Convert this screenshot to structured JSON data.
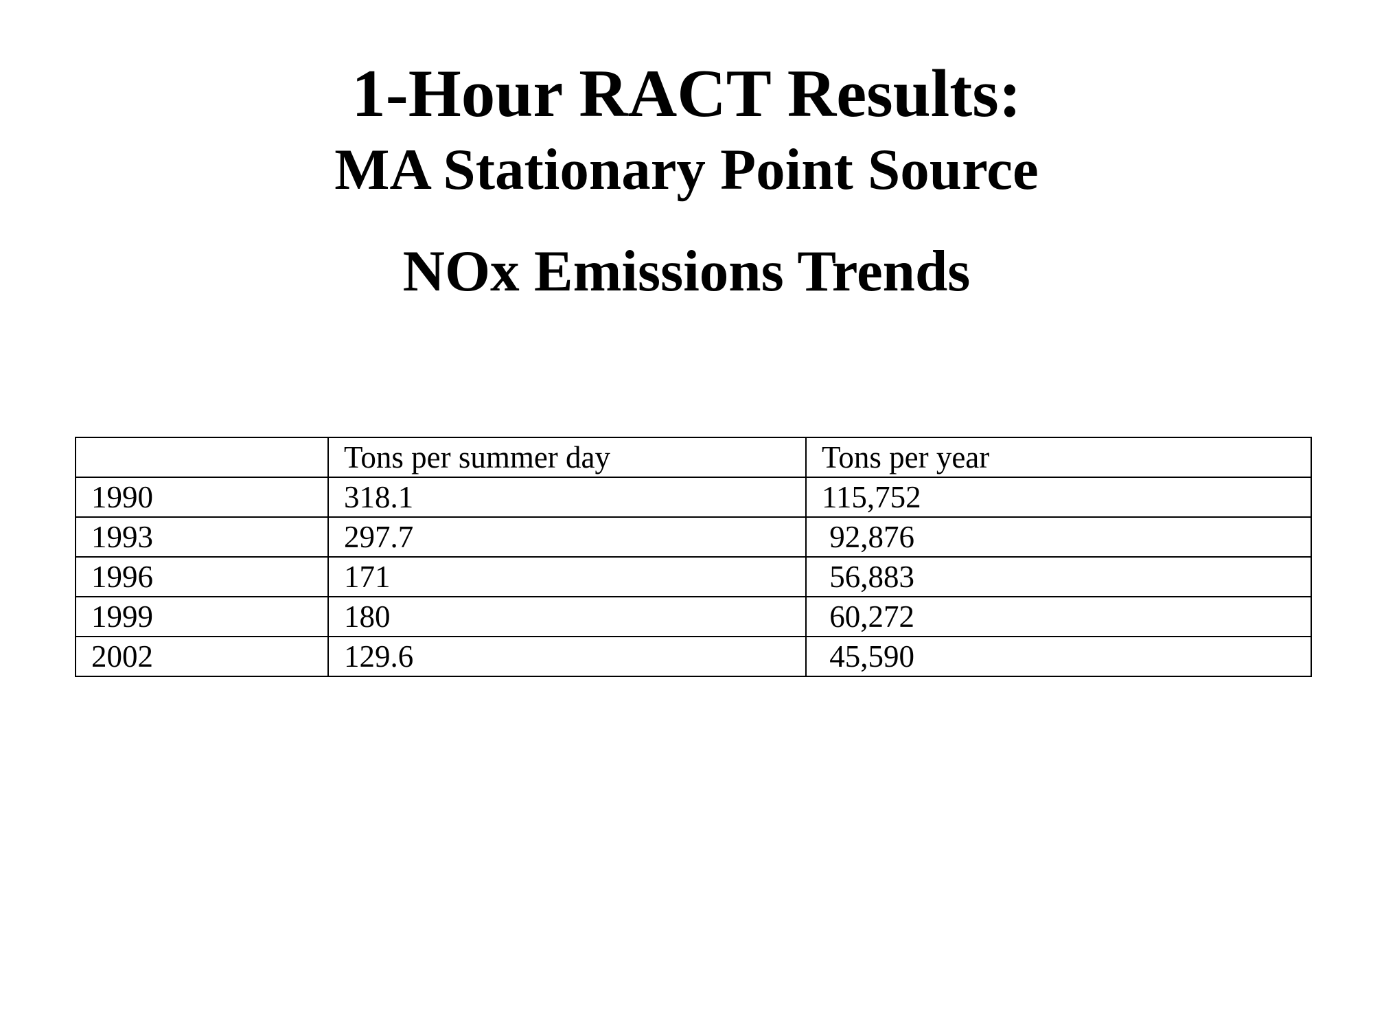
{
  "title": {
    "line1": "1-Hour RACT Results:",
    "line2": "MA Stationary Point Source",
    "line3": "NOx Emissions Trends"
  },
  "table": {
    "headers": [
      "",
      "Tons per summer day",
      "Tons per year"
    ],
    "rows": [
      [
        "1990",
        "318.1",
        "115,752"
      ],
      [
        "1993",
        "297.7",
        " 92,876"
      ],
      [
        "1996",
        "171",
        " 56,883"
      ],
      [
        "1999",
        "180",
        " 60,272"
      ],
      [
        "2002",
        "129.6",
        " 45,590"
      ]
    ]
  }
}
